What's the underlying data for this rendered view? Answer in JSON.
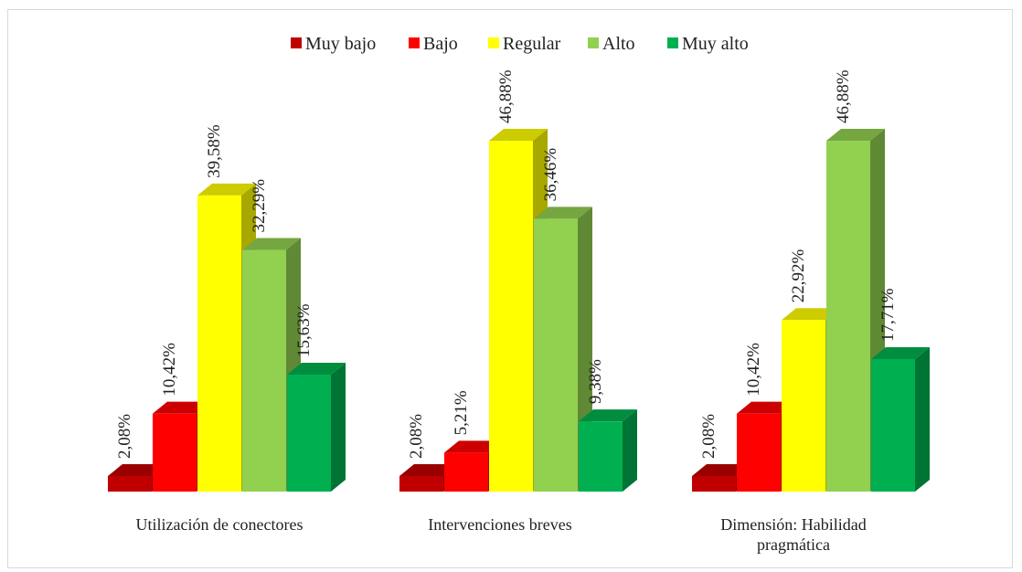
{
  "chart_data": {
    "type": "bar",
    "title": "",
    "xlabel": "",
    "ylabel": "",
    "ylim": [
      0,
      50
    ],
    "grid": false,
    "legend_position": "top",
    "categories": [
      "Utilización de conectores",
      "Intervenciones breves",
      "Dimensión: Habilidad pragmática"
    ],
    "series": [
      {
        "name": "Muy bajo",
        "color": "#c00000",
        "values": [
          2.08,
          2.08,
          2.08
        ],
        "labels": [
          "2,08%",
          "2,08%",
          "2,08%"
        ]
      },
      {
        "name": "Bajo",
        "color": "#ff0000",
        "values": [
          10.42,
          5.21,
          10.42
        ],
        "labels": [
          "10,42%",
          "5,21%",
          "10,42%"
        ]
      },
      {
        "name": "Regular",
        "color": "#ffff00",
        "values": [
          39.58,
          46.88,
          22.92
        ],
        "labels": [
          "39,58%",
          "46,88%",
          "22,92%"
        ]
      },
      {
        "name": "Alto",
        "color": "#92d050",
        "values": [
          32.29,
          36.46,
          46.88
        ],
        "labels": [
          "32,29%",
          "36,46%",
          "46,88%"
        ]
      },
      {
        "name": "Muy alto",
        "color": "#00b050",
        "values": [
          15.63,
          9.38,
          17.71
        ],
        "labels": [
          "15,63%",
          "9,38%",
          "17,71%"
        ]
      }
    ]
  }
}
